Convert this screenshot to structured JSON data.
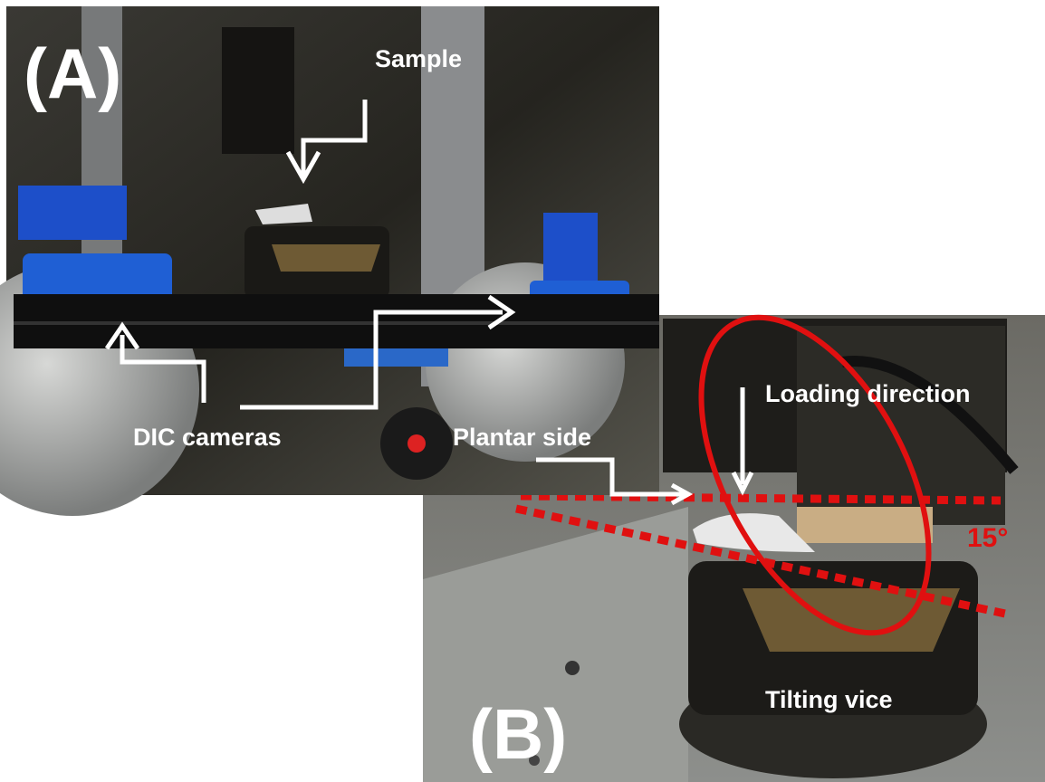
{
  "panel_a": {
    "label": "(A)",
    "annotations": {
      "sample": "Sample",
      "cameras": "DIC cameras",
      "plantar": "Plantar side"
    }
  },
  "panel_b": {
    "label": "(B)",
    "annotations": {
      "loading": "Loading direction",
      "angle": "15°",
      "vice": "Tilting vice"
    }
  }
}
